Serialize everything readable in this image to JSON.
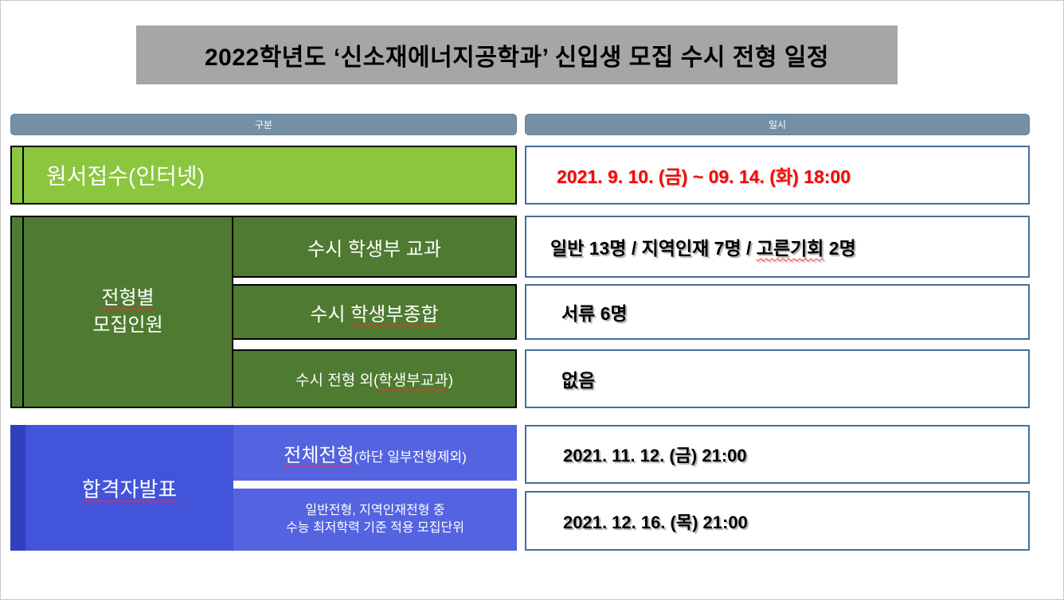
{
  "title": "2022학년도 ‘신소재에너지공학과’ 신입생 모집 수시 전형 일정",
  "columns": {
    "category": "구분",
    "datetime": "일시"
  },
  "application": {
    "label": "원서접수(인터넷)",
    "value": "2021. 9. 10. (금) ~ 09. 14. (화) 18:00"
  },
  "quota": {
    "header_wavy": "전형별",
    "header_rest": "모집인원",
    "rows": [
      {
        "label": "수시 학생부 교과",
        "value_pre": "일반 13명 / 지역인재 7명 / ",
        "value_wavy": "고른기회",
        "value_post": " 2명"
      },
      {
        "label_pre": "수시 ",
        "label_wavy": "학생부종합",
        "value": "서류 6명"
      },
      {
        "label_pre": "수시 전형 외(",
        "label_wavy": "학생부교과",
        "label_post": ")",
        "value": "없음"
      }
    ]
  },
  "announce": {
    "header_wavy": "합격자발표",
    "rows": [
      {
        "label_wavy": "전체전형",
        "label_sub": "(하단 일부전형제외)",
        "value": "2021. 11. 12. (금) 21:00"
      },
      {
        "label_line1": "일반전형, 지역인재전형 중",
        "label_line2": "수능 최저학력 기준 적용 모집단위",
        "value": "2021. 12. 16. (목) 21:00"
      }
    ]
  },
  "colors": {
    "title_gray": "#A6A6A6",
    "header_slate": "#7590A5",
    "green_light": "#8CC63F",
    "green_dark": "#4E7B31",
    "blue_main": "#4254D9",
    "blue_strip": "#3041C0",
    "blue_sub": "#5463E0",
    "value_cell_border": "#41719C",
    "highlight_red": "#FF0000",
    "squiggle_red": "#FF2A2A",
    "cell_outline": "#000000"
  }
}
